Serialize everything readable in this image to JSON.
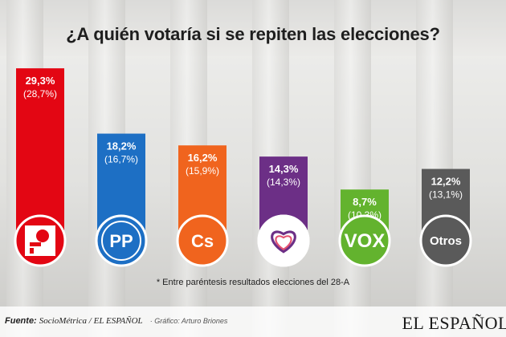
{
  "chart_data": {
    "type": "bar",
    "title": "¿A quién votaría si se repiten las elecciones?",
    "categories": [
      "PSOE",
      "PP",
      "Cs",
      "Unidas Podemos",
      "VOX",
      "Otros"
    ],
    "values": [
      29.3,
      18.2,
      16.2,
      14.3,
      8.7,
      12.2
    ],
    "value_labels": [
      "29,3%",
      "18,2%",
      "16,2%",
      "14,3%",
      "8,7%",
      "12,2%"
    ],
    "previous_labels": [
      "(28,7%)",
      "(16,7%)",
      "(15,9%)",
      "(14,3%)",
      "(10,3%)",
      "(13,1%)"
    ],
    "icon_labels": [
      "",
      "PP",
      "Cs",
      "",
      "VOX",
      "Otros"
    ],
    "colors": [
      "#e30613",
      "#1d6fc4",
      "#f0641e",
      "#6c2f86",
      "#63b32e",
      "#5a5a5a"
    ],
    "ylim": [
      0,
      30
    ],
    "grid": false,
    "legend": "none"
  },
  "note": "* Entre paréntesis resultados elecciones del 28-A",
  "footer": {
    "source_label": "Fuente:",
    "source_value": "SocioMétrica / EL ESPAÑOL",
    "credit_label": "Gráfico:",
    "credit_value": "Arturo Briones",
    "brand": "EL ESPAÑOL"
  }
}
